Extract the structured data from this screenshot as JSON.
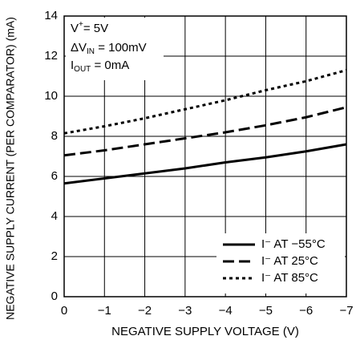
{
  "chart_data": {
    "type": "line",
    "y_label": "NEGATIVE SUPPLY CURRENT (PER COMPARATOR) (mA)",
    "x_label": "NEGATIVE SUPPLY VOLTAGE (V)",
    "x": [
      0,
      -1,
      -2,
      -3,
      -4,
      -5,
      -6,
      -7
    ],
    "xlim": [
      0,
      -7
    ],
    "xticks": [
      0,
      {
        "value": -1,
        "label": "−1"
      },
      {
        "value": -2,
        "label": "−2"
      },
      {
        "value": -3,
        "label": "−3"
      },
      {
        "value": -4,
        "label": "−4"
      },
      {
        "value": -5,
        "label": "−5"
      },
      {
        "value": -6,
        "label": "−6"
      },
      {
        "value": -7,
        "label": "−7"
      }
    ],
    "ylim": [
      0,
      14
    ],
    "yticks": [
      0,
      2,
      4,
      6,
      8,
      10,
      12,
      14
    ],
    "grid": true,
    "legend_position": "lower right",
    "annotations": [
      [
        "V",
        "+",
        "= 5V"
      ],
      [
        "ΔV",
        "IN",
        " = 100mV"
      ],
      [
        "I",
        "OUT",
        " = 0mA"
      ]
    ],
    "series": [
      {
        "name": "I⁻ AT −55°C",
        "color": "#000000",
        "dash": "solid",
        "values": [
          5.65,
          5.9,
          6.15,
          6.4,
          6.7,
          6.95,
          7.25,
          7.6
        ]
      },
      {
        "name": "I⁻ AT 25°C",
        "color": "#000000",
        "dash": "dashed",
        "values": [
          7.05,
          7.3,
          7.6,
          7.9,
          8.2,
          8.55,
          8.95,
          9.45
        ]
      },
      {
        "name": "I⁻ AT 85°C",
        "color": "#000000",
        "dash": "dotted",
        "values": [
          8.15,
          8.5,
          8.9,
          9.35,
          9.8,
          10.3,
          10.75,
          11.3
        ]
      }
    ]
  }
}
